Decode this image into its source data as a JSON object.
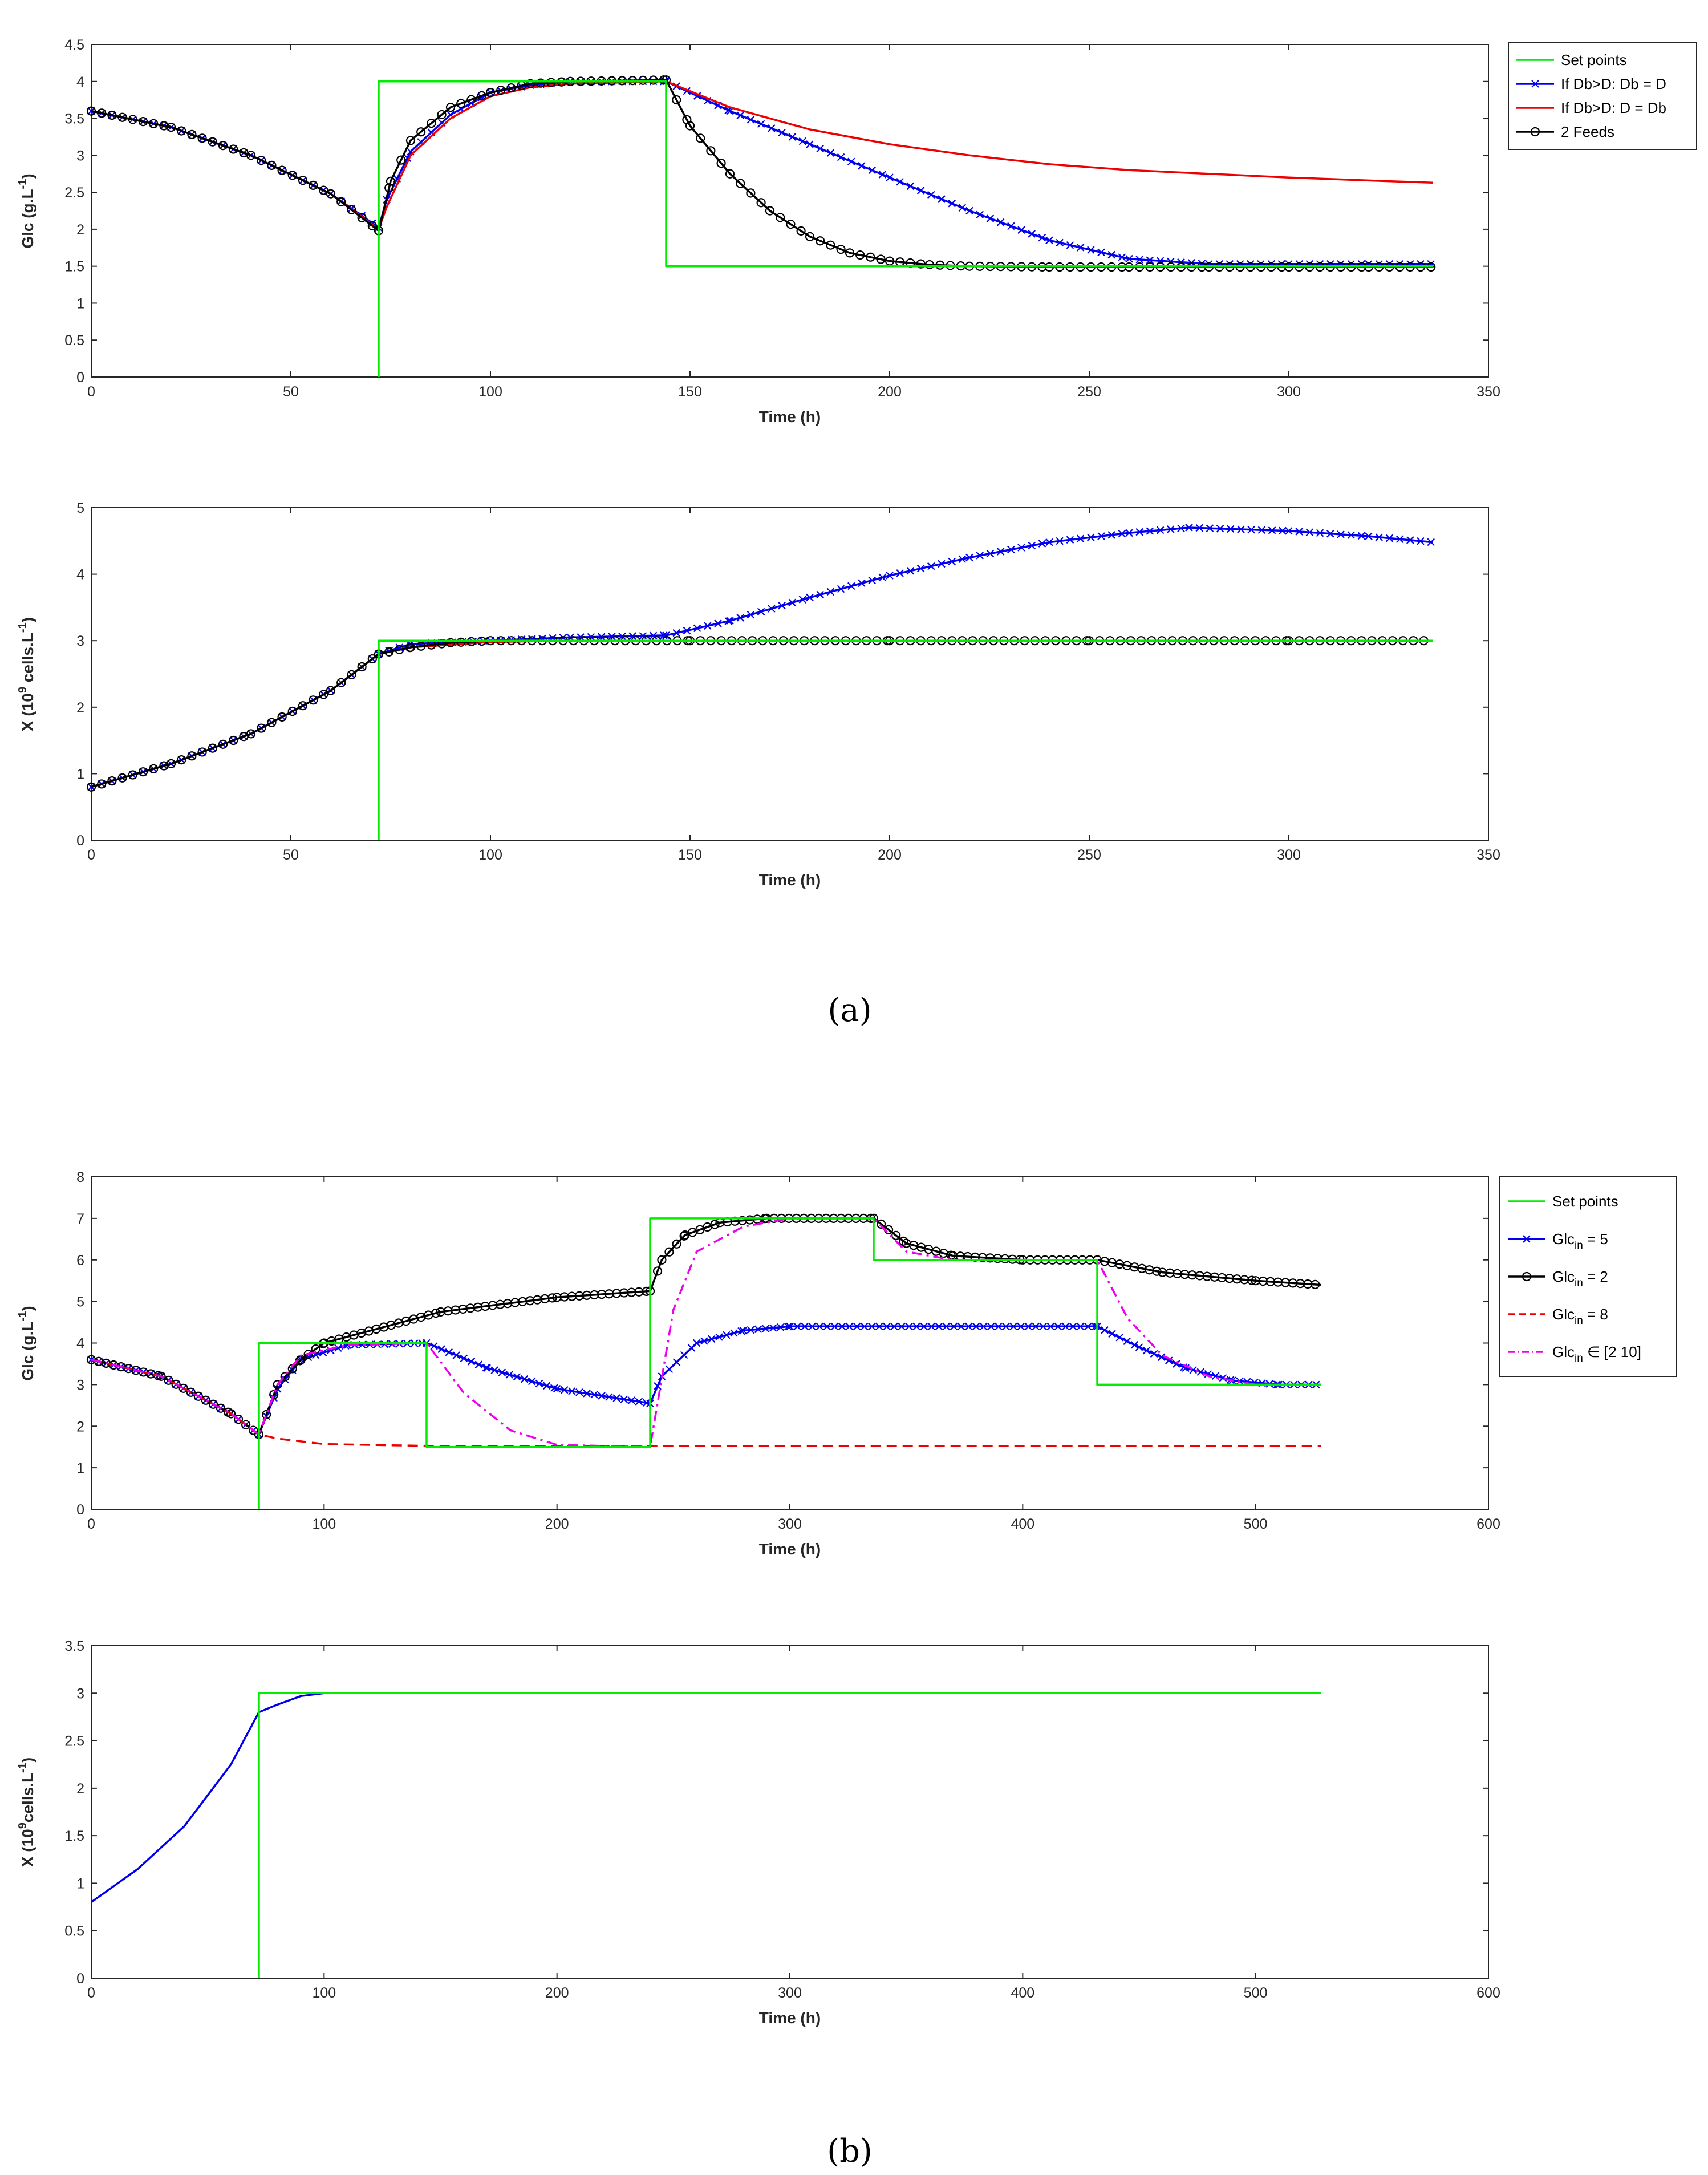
{
  "panels": {
    "a_label": "(a)",
    "b_label": "(b)"
  },
  "colors": {
    "setpoint": "#00ee00",
    "blue": "#0000ee",
    "red": "#ee0000",
    "black": "#000000",
    "magenta": "#ee00ee",
    "teal": "#008080"
  },
  "chart_data": [
    {
      "id": "a_glc",
      "type": "line",
      "title": "",
      "xlabel": "Time (h)",
      "ylabel": "Glc (g.L-1)",
      "xlim": [
        0,
        350
      ],
      "ylim": [
        0,
        4.5
      ],
      "xticks": [
        0,
        50,
        100,
        150,
        200,
        250,
        300,
        350
      ],
      "yticks": [
        0,
        0.5,
        1,
        1.5,
        2,
        2.5,
        3,
        3.5,
        4,
        4.5
      ],
      "legend": "top-right outside",
      "series": [
        {
          "name": "Set points",
          "color": "#00ee00",
          "style": "solid",
          "marker": "none",
          "x": [
            72,
            72,
            72,
            144,
            144,
            336
          ],
          "y": [
            0,
            4,
            4,
            4,
            1.5,
            1.5
          ]
        },
        {
          "name": "If Db>D: Db = D",
          "color": "#0000ee",
          "style": "solid",
          "marker": "x",
          "x": [
            0,
            20,
            40,
            60,
            72,
            74,
            80,
            90,
            100,
            110,
            120,
            144,
            160,
            180,
            200,
            220,
            240,
            260,
            280,
            300,
            320,
            336
          ],
          "y": [
            3.6,
            3.38,
            3.0,
            2.48,
            2.02,
            2.4,
            3.05,
            3.55,
            3.85,
            3.95,
            4.0,
            4.0,
            3.6,
            3.15,
            2.7,
            2.25,
            1.85,
            1.6,
            1.53,
            1.53,
            1.53,
            1.53
          ]
        },
        {
          "name": "If Db>D: D = Db",
          "color": "#ee0000",
          "style": "solid",
          "marker": "none",
          "x": [
            0,
            20,
            40,
            60,
            72,
            74,
            80,
            90,
            100,
            110,
            120,
            144,
            160,
            180,
            200,
            220,
            240,
            260,
            280,
            300,
            320,
            336
          ],
          "y": [
            3.6,
            3.38,
            3.0,
            2.48,
            2.0,
            2.3,
            3.0,
            3.5,
            3.8,
            3.92,
            3.97,
            4.0,
            3.65,
            3.35,
            3.15,
            3.0,
            2.88,
            2.8,
            2.75,
            2.7,
            2.66,
            2.63
          ]
        },
        {
          "name": "2 Feeds",
          "color": "#000000",
          "style": "solid",
          "marker": "o",
          "x": [
            0,
            20,
            40,
            60,
            72,
            75,
            80,
            90,
            100,
            110,
            120,
            144,
            150,
            160,
            170,
            180,
            190,
            200,
            210,
            220,
            240,
            260,
            280,
            300,
            320,
            336
          ],
          "y": [
            3.6,
            3.38,
            3.0,
            2.48,
            1.98,
            2.65,
            3.2,
            3.65,
            3.85,
            3.97,
            4.0,
            4.02,
            3.4,
            2.75,
            2.25,
            1.9,
            1.68,
            1.57,
            1.52,
            1.5,
            1.49,
            1.49,
            1.49,
            1.49,
            1.49,
            1.49
          ]
        }
      ]
    },
    {
      "id": "a_x",
      "type": "line",
      "title": "",
      "xlabel": "Time (h)",
      "ylabel": "X (10^9 cells.L-1)",
      "xlim": [
        0,
        350
      ],
      "ylim": [
        0,
        5
      ],
      "xticks": [
        0,
        50,
        100,
        150,
        200,
        250,
        300,
        350
      ],
      "yticks": [
        0,
        1,
        2,
        3,
        4,
        5
      ],
      "legend": "none",
      "series": [
        {
          "name": "Set points",
          "color": "#00ee00",
          "style": "solid",
          "marker": "none",
          "x": [
            72,
            72,
            72,
            336
          ],
          "y": [
            0,
            3,
            3,
            3
          ]
        },
        {
          "name": "If Db>D: Db = D",
          "color": "#0000ee",
          "style": "solid",
          "marker": "x",
          "x": [
            0,
            20,
            40,
            60,
            72,
            80,
            100,
            120,
            144,
            160,
            180,
            200,
            220,
            240,
            260,
            275,
            300,
            320,
            336
          ],
          "y": [
            0.8,
            1.15,
            1.6,
            2.25,
            2.8,
            2.95,
            3.0,
            3.05,
            3.08,
            3.3,
            3.65,
            3.98,
            4.25,
            4.48,
            4.62,
            4.7,
            4.65,
            4.57,
            4.48
          ]
        },
        {
          "name": "If Db>D: D = Db",
          "color": "#ee0000",
          "style": "solid",
          "marker": "none",
          "x": [
            0,
            20,
            40,
            60,
            72,
            80,
            100,
            120,
            144
          ],
          "y": [
            0.8,
            1.15,
            1.6,
            2.25,
            2.8,
            2.9,
            2.98,
            3.0,
            3.0
          ]
        },
        {
          "name": "2 Feeds",
          "color": "#000000",
          "style": "solid",
          "marker": "o",
          "x": [
            0,
            20,
            40,
            60,
            72,
            80,
            90,
            100,
            150,
            200,
            250,
            300,
            336
          ],
          "y": [
            0.8,
            1.15,
            1.6,
            2.25,
            2.8,
            2.9,
            2.97,
            3.0,
            3.0,
            3.0,
            3.0,
            3.0,
            3.0
          ]
        }
      ]
    },
    {
      "id": "b_glc",
      "type": "line",
      "title": "",
      "xlabel": "Time (h)",
      "ylabel": "Glc (g.L-1)",
      "xlim": [
        0,
        600
      ],
      "ylim": [
        0,
        8
      ],
      "xticks": [
        0,
        100,
        200,
        300,
        400,
        500,
        600
      ],
      "yticks": [
        0,
        1,
        2,
        3,
        4,
        5,
        6,
        7,
        8
      ],
      "legend": "top-right outside",
      "series": [
        {
          "name": "Set points",
          "color": "#00ee00",
          "style": "solid",
          "marker": "none",
          "x": [
            72,
            72,
            72,
            144,
            144,
            240,
            240,
            336,
            336,
            432,
            432,
            528
          ],
          "y": [
            0,
            4,
            4,
            4,
            1.5,
            1.5,
            7,
            7,
            6,
            6,
            3,
            3
          ]
        },
        {
          "name": "Glc_in = 5",
          "color": "#0000ee",
          "style": "solid",
          "marker": "x",
          "x": [
            0,
            30,
            60,
            72,
            80,
            90,
            110,
            144,
            170,
            200,
            240,
            245,
            260,
            280,
            300,
            432,
            450,
            470,
            490,
            510,
            528
          ],
          "y": [
            3.6,
            3.2,
            2.3,
            1.8,
            2.9,
            3.6,
            3.95,
            4.0,
            3.4,
            2.9,
            2.55,
            3.2,
            4.0,
            4.3,
            4.4,
            4.4,
            3.9,
            3.4,
            3.1,
            3.0,
            3.0
          ]
        },
        {
          "name": "Glc_in = 2",
          "color": "#000000",
          "style": "solid",
          "marker": "o",
          "x": [
            0,
            30,
            60,
            72,
            80,
            90,
            100,
            150,
            200,
            240,
            245,
            255,
            270,
            290,
            336,
            350,
            370,
            400,
            432,
            460,
            500,
            528
          ],
          "y": [
            3.6,
            3.2,
            2.3,
            1.8,
            3.0,
            3.6,
            4.0,
            4.75,
            5.1,
            5.25,
            6.0,
            6.6,
            6.9,
            7.0,
            7.0,
            6.4,
            6.1,
            6.0,
            6.0,
            5.7,
            5.5,
            5.4
          ]
        },
        {
          "name": "Glc_in = 8",
          "color": "#ee0000",
          "style": "dashed",
          "marker": "none",
          "x": [
            0,
            30,
            60,
            72,
            80,
            100,
            150,
            200,
            300,
            400,
            528
          ],
          "y": [
            3.6,
            3.2,
            2.3,
            1.8,
            1.7,
            1.57,
            1.52,
            1.52,
            1.52,
            1.52,
            1.52
          ]
        },
        {
          "name": "Glc_in ∈ [2 10]",
          "color": "#ee00ee",
          "style": "dashdot",
          "marker": "none",
          "x": [
            0,
            30,
            60,
            72,
            80,
            90,
            110,
            144,
            160,
            180,
            200,
            240,
            250,
            260,
            280,
            300,
            336,
            350,
            370,
            432,
            445,
            460,
            480,
            500,
            528
          ],
          "y": [
            3.6,
            3.2,
            2.3,
            1.8,
            3.0,
            3.7,
            3.95,
            4.0,
            2.8,
            1.9,
            1.55,
            1.5,
            4.8,
            6.2,
            6.8,
            7.0,
            7.0,
            6.2,
            6.0,
            6.0,
            4.6,
            3.7,
            3.2,
            3.0,
            3.0
          ]
        }
      ]
    },
    {
      "id": "b_x",
      "type": "line",
      "title": "",
      "xlabel": "Time (h)",
      "ylabel": "X (10^9cells.L-1)",
      "xlim": [
        0,
        600
      ],
      "ylim": [
        0,
        3.5
      ],
      "xticks": [
        0,
        100,
        200,
        300,
        400,
        500,
        600
      ],
      "yticks": [
        0,
        0.5,
        1,
        1.5,
        2,
        2.5,
        3,
        3.5
      ],
      "legend": "none",
      "series": [
        {
          "name": "Set points",
          "color": "#00ee00",
          "style": "solid",
          "marker": "none",
          "x": [
            72,
            72,
            72,
            528
          ],
          "y": [
            0,
            3,
            3,
            3
          ]
        },
        {
          "name": "Glc_in = 5",
          "color": "#0000ee",
          "style": "solid",
          "marker": "none",
          "x": [
            0,
            20,
            40,
            60,
            72,
            80,
            90,
            100,
            200,
            300,
            400,
            500,
            528
          ],
          "y": [
            0.8,
            1.15,
            1.6,
            2.25,
            2.8,
            2.88,
            2.97,
            3.0,
            3.0,
            3.0,
            3.0,
            3.0,
            3.0
          ]
        },
        {
          "name": "Glc_in ∈ [2 10]",
          "color": "#008080",
          "style": "solid",
          "marker": "none",
          "x": [
            90,
            200,
            300,
            400,
            528
          ],
          "y": [
            3.0,
            3.0,
            3.0,
            3.0,
            3.0
          ]
        }
      ]
    }
  ]
}
